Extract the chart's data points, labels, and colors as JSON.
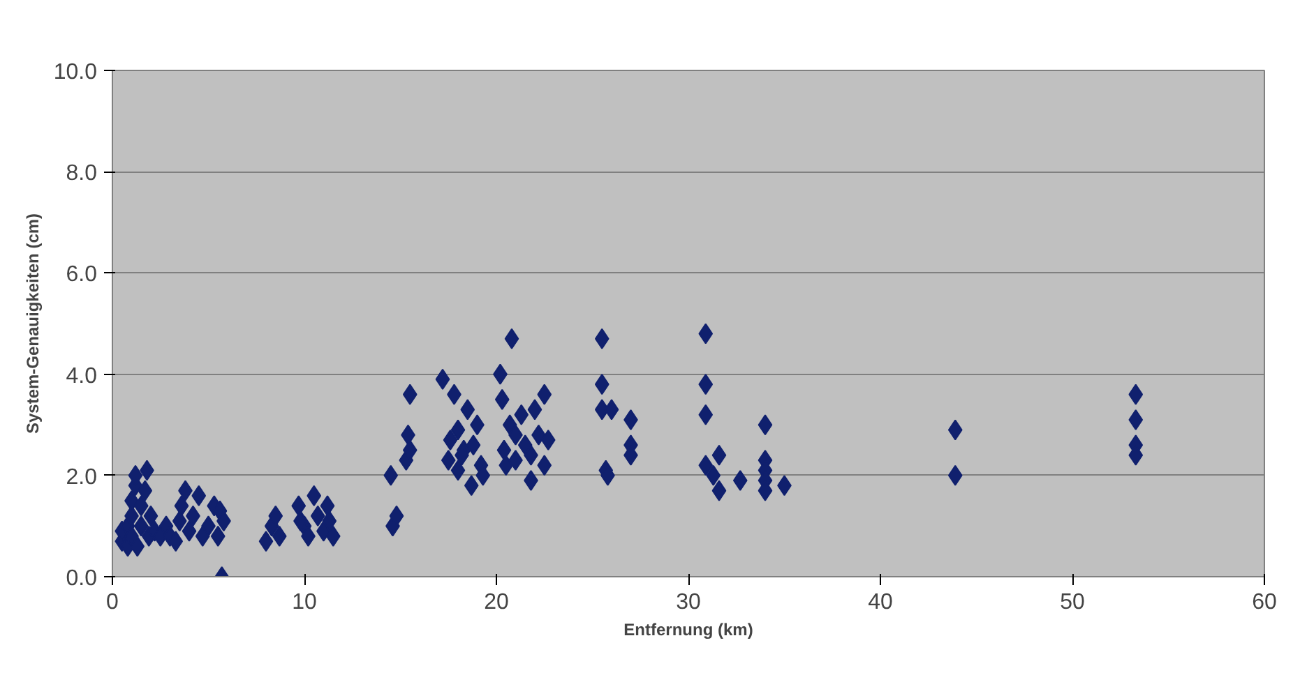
{
  "chart_data": {
    "type": "scatter",
    "xlabel": "Entfernung (km)",
    "ylabel": "System-Genauigkeiten (cm)",
    "xlim": [
      0,
      60
    ],
    "xticks": [
      0,
      10,
      20,
      30,
      40,
      50,
      60
    ],
    "ylim": [
      0,
      10
    ],
    "yticks": [
      {
        "value": 0,
        "label": "0.0"
      },
      {
        "value": 2,
        "label": "2.0"
      },
      {
        "value": 4,
        "label": "4.0"
      },
      {
        "value": 6,
        "label": "6.0"
      },
      {
        "value": 8,
        "label": "8.0"
      },
      {
        "value": 10,
        "label": "10.0"
      }
    ],
    "grid": "y",
    "marker": "diamond",
    "series": [
      {
        "color": "#10206e",
        "x": [
          0.5,
          0.5,
          0.8,
          0.8,
          1.0,
          1.0,
          1.0,
          1.2,
          1.2,
          1.3,
          1.5,
          1.5,
          1.7,
          1.8,
          1.9,
          2.0,
          2.2,
          2.5,
          2.8,
          3.0,
          3.3,
          3.5,
          3.6,
          3.8,
          4.0,
          4.2,
          4.5,
          4.7,
          5.0,
          5.3,
          5.5,
          5.6,
          5.7,
          5.8,
          8.0,
          8.3,
          8.5,
          8.7,
          9.7,
          10.0,
          10.2,
          10.5,
          10.7,
          11.0,
          11.2,
          11.5,
          11.3,
          9.8,
          14.5,
          14.6,
          14.8,
          15.3,
          15.4,
          15.5,
          15.5,
          17.2,
          17.5,
          17.6,
          17.8,
          18.0,
          18.0,
          18.3,
          18.5,
          18.7,
          18.8,
          19.0,
          19.2,
          19.3,
          18.2,
          20.2,
          20.3,
          20.4,
          20.5,
          20.7,
          20.8,
          21.0,
          21.0,
          21.3,
          21.5,
          21.8,
          21.8,
          22.0,
          22.2,
          22.5,
          22.5,
          22.7,
          25.5,
          25.5,
          25.5,
          25.7,
          25.8,
          26.0,
          27.0,
          27.0,
          27.0,
          30.9,
          30.9,
          30.9,
          30.9,
          31.3,
          31.6,
          31.6,
          32.7,
          34.0,
          34.0,
          34.0,
          34.0,
          34.0,
          35.0,
          43.9,
          43.9,
          53.3,
          53.3,
          53.3,
          53.3
        ],
        "values": [
          0.7,
          0.9,
          0.6,
          1.0,
          0.8,
          1.2,
          1.5,
          1.8,
          2.0,
          0.6,
          1.0,
          1.4,
          1.7,
          2.1,
          0.8,
          1.2,
          0.9,
          0.8,
          1.0,
          0.8,
          0.7,
          1.1,
          1.4,
          1.7,
          0.9,
          1.2,
          1.6,
          0.8,
          1.0,
          1.4,
          0.8,
          1.3,
          0.0,
          1.1,
          0.7,
          1.0,
          1.2,
          0.8,
          1.4,
          1.0,
          0.8,
          1.6,
          1.2,
          0.9,
          1.4,
          0.8,
          1.1,
          1.1,
          2.0,
          1.0,
          1.2,
          2.3,
          2.8,
          3.6,
          2.5,
          3.9,
          2.3,
          2.7,
          3.6,
          2.1,
          2.9,
          2.5,
          3.3,
          1.8,
          2.6,
          3.0,
          2.2,
          2.0,
          2.4,
          4.0,
          3.5,
          2.5,
          2.2,
          3.0,
          4.7,
          2.8,
          2.3,
          3.2,
          2.6,
          1.9,
          2.4,
          3.3,
          2.8,
          3.6,
          2.2,
          2.7,
          4.7,
          3.8,
          3.3,
          2.1,
          2.0,
          3.3,
          3.1,
          2.6,
          2.4,
          4.8,
          3.8,
          3.2,
          2.2,
          2.0,
          2.4,
          1.7,
          1.9,
          3.0,
          2.3,
          2.1,
          1.9,
          1.7,
          1.8,
          2.9,
          2.0,
          3.6,
          3.1,
          2.6,
          2.4
        ]
      }
    ]
  }
}
